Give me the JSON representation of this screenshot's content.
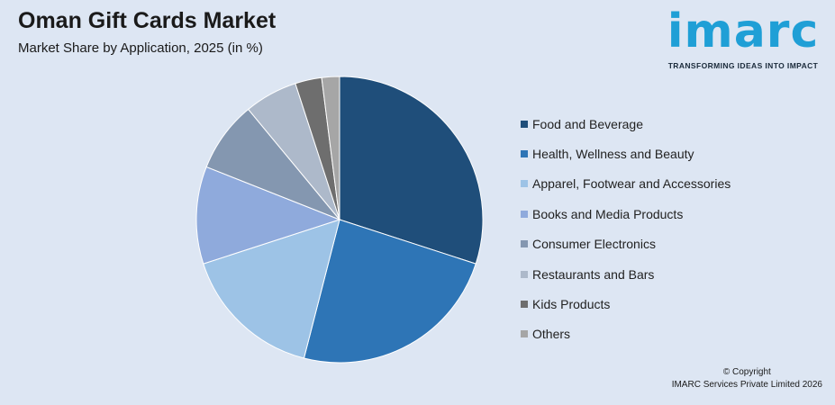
{
  "header": {
    "title": "Oman Gift Cards Market",
    "subtitle": "Market Share by Application, 2025 (in %)"
  },
  "logo": {
    "wordmark": "imarc",
    "tagline": "TRANSFORMING IDEAS INTO IMPACT"
  },
  "footer": {
    "copyright": "© Copyright",
    "company": "IMARC Services Private Limited 2026"
  },
  "chart_data": {
    "type": "pie",
    "title": "Oman Gift Cards Market",
    "subtitle": "Market Share by Application, 2025 (in %)",
    "legend_position": "right",
    "slices": [
      {
        "label": "Food and Beverage",
        "value": 30,
        "color": "#1f4e7a"
      },
      {
        "label": "Health, Wellness and Beauty",
        "value": 24,
        "color": "#2e75b6"
      },
      {
        "label": "Apparel, Footwear and Accessories",
        "value": 16,
        "color": "#9dc3e6"
      },
      {
        "label": "Books and Media Products",
        "value": 11,
        "color": "#8faadc"
      },
      {
        "label": "Consumer Electronics",
        "value": 8,
        "color": "#8497b0"
      },
      {
        "label": "Restaurants and Bars",
        "value": 6,
        "color": "#adb9ca"
      },
      {
        "label": "Kids Products",
        "value": 3,
        "color": "#6e6e6e"
      },
      {
        "label": "Others",
        "value": 2,
        "color": "#a6a6a6"
      }
    ]
  }
}
